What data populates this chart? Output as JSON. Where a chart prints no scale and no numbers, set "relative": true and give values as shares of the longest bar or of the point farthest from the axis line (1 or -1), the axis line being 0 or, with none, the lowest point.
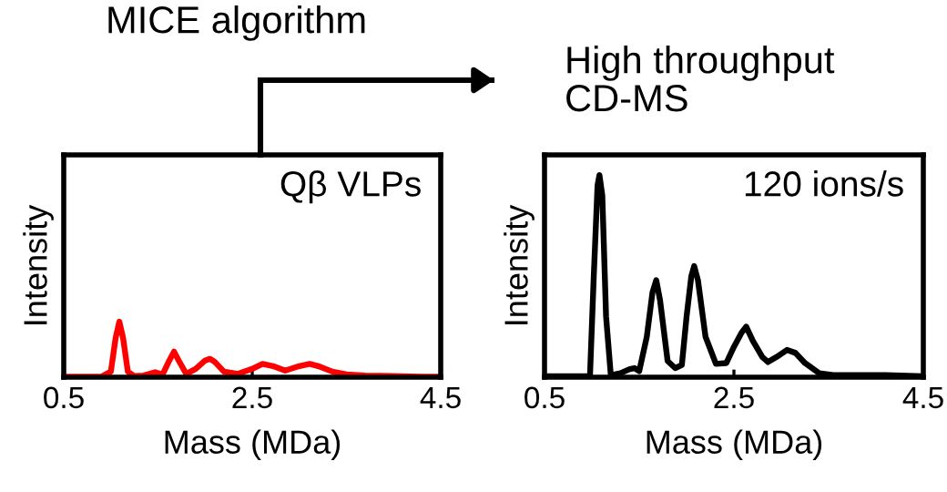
{
  "chart_data": [
    {
      "type": "line",
      "title": "MICE algorithm",
      "xlabel": "Mass (MDa)",
      "ylabel": "Intensity",
      "annotations": [
        "Qβ VLPs"
      ],
      "relative": true,
      "tick_labels": "x",
      "xlim": [
        0.5,
        4.5
      ],
      "xticks": [
        0.5,
        2.5,
        4.5
      ],
      "x": [
        0.5,
        0.7,
        0.9,
        1.0,
        1.05,
        1.09,
        1.13,
        1.18,
        1.25,
        1.35,
        1.47,
        1.55,
        1.62,
        1.67,
        1.72,
        1.8,
        1.9,
        2.0,
        2.05,
        2.1,
        2.2,
        2.35,
        2.5,
        2.61,
        2.72,
        2.85,
        3.0,
        3.11,
        3.2,
        3.35,
        3.5,
        3.7,
        4.0,
        4.3,
        4.5
      ],
      "series": [
        {
          "color": "#ff0000",
          "values": [
            0.01,
            0.01,
            0.01,
            0.1,
            0.7,
            1,
            0.7,
            0.1,
            0.02,
            0.03,
            0.09,
            0.05,
            0.3,
            0.46,
            0.3,
            0.06,
            0.15,
            0.3,
            0.33,
            0.28,
            0.1,
            0.06,
            0.15,
            0.24,
            0.2,
            0.12,
            0.2,
            0.24,
            0.2,
            0.1,
            0.05,
            0.03,
            0.02,
            0.01,
            0.01
          ]
        }
      ]
    },
    {
      "type": "line",
      "title": "High throughput\nCD-MS",
      "xlabel": "Mass (MDa)",
      "ylabel": "Intensity",
      "annotations": [
        "120 ions/s"
      ],
      "relative": true,
      "tick_labels": "x",
      "xlim": [
        0.5,
        4.5
      ],
      "xticks": [
        0.5,
        2.5,
        4.5
      ],
      "x": [
        0.5,
        0.8,
        0.98,
        1.02,
        1.06,
        1.08,
        1.11,
        1.15,
        1.2,
        1.3,
        1.4,
        1.45,
        1.5,
        1.58,
        1.64,
        1.68,
        1.72,
        1.8,
        1.88,
        1.95,
        2.0,
        2.05,
        2.08,
        2.12,
        2.2,
        2.31,
        2.42,
        2.5,
        2.58,
        2.63,
        2.7,
        2.8,
        2.86,
        2.95,
        3.06,
        3.15,
        3.25,
        3.4,
        3.55,
        3.8,
        4.1,
        4.5
      ],
      "series": [
        {
          "color": "#000000",
          "values": [
            0.005,
            0.005,
            0.005,
            0.5,
            0.95,
            1,
            0.9,
            0.3,
            0.01,
            0.02,
            0.04,
            0.045,
            0.03,
            0.2,
            0.42,
            0.48,
            0.38,
            0.08,
            0.045,
            0.06,
            0.3,
            0.5,
            0.55,
            0.48,
            0.2,
            0.066,
            0.07,
            0.15,
            0.22,
            0.25,
            0.18,
            0.1,
            0.075,
            0.1,
            0.135,
            0.12,
            0.07,
            0.02,
            0.01,
            0.01,
            0.01,
            0.005
          ]
        }
      ]
    }
  ]
}
